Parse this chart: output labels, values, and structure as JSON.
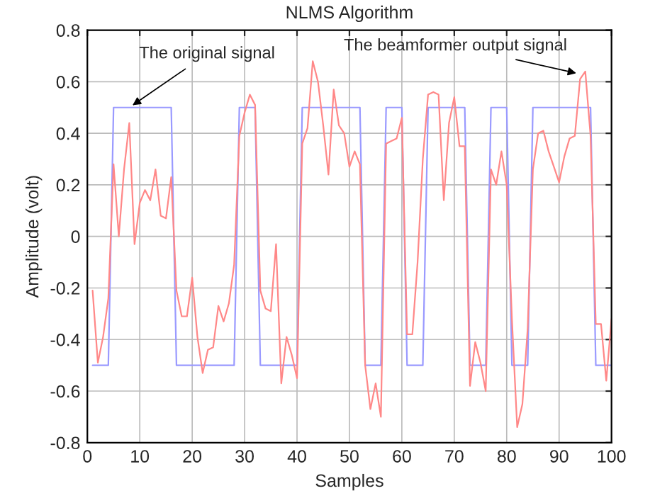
{
  "chart_data": {
    "type": "line",
    "title": "NLMS Algorithm",
    "xlabel": "Samples",
    "ylabel": "Amplitude (volt)",
    "x": [
      1,
      2,
      3,
      4,
      5,
      6,
      7,
      8,
      9,
      10,
      11,
      12,
      13,
      14,
      15,
      16,
      17,
      18,
      19,
      20,
      21,
      22,
      23,
      24,
      25,
      26,
      27,
      28,
      29,
      30,
      31,
      32,
      33,
      34,
      35,
      36,
      37,
      38,
      39,
      40,
      41,
      42,
      43,
      44,
      45,
      46,
      47,
      48,
      49,
      50,
      51,
      52,
      53,
      54,
      55,
      56,
      57,
      58,
      59,
      60,
      61,
      62,
      63,
      64,
      65,
      66,
      67,
      68,
      69,
      70,
      71,
      72,
      73,
      74,
      75,
      76,
      77,
      78,
      79,
      80,
      81,
      82,
      83,
      84,
      85,
      86,
      87,
      88,
      89,
      90,
      91,
      92,
      93,
      94,
      95,
      96,
      97,
      98,
      99,
      100
    ],
    "series": [
      {
        "color": "#9a9aff",
        "values": [
          -0.5,
          -0.5,
          -0.5,
          -0.5,
          0.5,
          0.5,
          0.5,
          0.5,
          0.5,
          0.5,
          0.5,
          0.5,
          0.5,
          0.5,
          0.5,
          0.5,
          -0.5,
          -0.5,
          -0.5,
          -0.5,
          -0.5,
          -0.5,
          -0.5,
          -0.5,
          -0.5,
          -0.5,
          -0.5,
          -0.5,
          0.5,
          0.5,
          0.5,
          0.5,
          -0.5,
          -0.5,
          -0.5,
          -0.5,
          -0.5,
          -0.5,
          -0.5,
          -0.5,
          0.5,
          0.5,
          0.5,
          0.5,
          0.5,
          0.5,
          0.5,
          0.5,
          0.5,
          0.5,
          0.5,
          0.5,
          -0.5,
          -0.5,
          -0.5,
          -0.5,
          0.5,
          0.5,
          0.5,
          0.5,
          -0.5,
          -0.5,
          -0.5,
          -0.5,
          0.5,
          0.5,
          0.5,
          0.5,
          0.5,
          0.5,
          0.5,
          0.5,
          -0.5,
          -0.5,
          -0.5,
          -0.5,
          0.5,
          0.5,
          0.5,
          0.5,
          -0.5,
          -0.5,
          -0.5,
          -0.5,
          0.5,
          0.5,
          0.5,
          0.5,
          0.5,
          0.5,
          0.5,
          0.5,
          0.5,
          0.5,
          0.5,
          0.5,
          -0.5,
          -0.5,
          -0.5,
          -0.5
        ]
      },
      {
        "color": "#ff8888",
        "values": [
          -0.21,
          -0.49,
          -0.39,
          -0.24,
          0.28,
          0.0,
          0.26,
          0.44,
          -0.03,
          0.13,
          0.18,
          0.14,
          0.26,
          0.08,
          0.07,
          0.23,
          -0.21,
          -0.31,
          -0.31,
          -0.16,
          -0.39,
          -0.53,
          -0.44,
          -0.43,
          -0.27,
          -0.33,
          -0.26,
          -0.11,
          0.39,
          0.48,
          0.55,
          0.51,
          -0.21,
          -0.28,
          -0.29,
          -0.03,
          -0.57,
          -0.39,
          -0.46,
          -0.55,
          0.36,
          0.42,
          0.68,
          0.6,
          0.43,
          0.24,
          0.57,
          0.43,
          0.4,
          0.27,
          0.33,
          0.28,
          -0.5,
          -0.67,
          -0.57,
          -0.7,
          0.36,
          0.37,
          0.38,
          0.46,
          -0.38,
          -0.38,
          -0.1,
          0.3,
          0.55,
          0.56,
          0.55,
          0.14,
          0.44,
          0.54,
          0.35,
          0.35,
          -0.58,
          -0.41,
          -0.49,
          -0.6,
          0.26,
          0.2,
          0.33,
          0.2,
          -0.32,
          -0.74,
          -0.65,
          -0.36,
          0.26,
          0.4,
          0.41,
          0.33,
          0.27,
          0.21,
          0.31,
          0.38,
          0.39,
          0.61,
          0.64,
          0.39,
          -0.34,
          -0.34,
          -0.56,
          -0.32
        ]
      }
    ],
    "annotations": [
      {
        "text": "The original signal",
        "x": 8,
        "y": 0.5
      },
      {
        "text": "The beamformer output signal",
        "x": 94,
        "y": 0.63
      }
    ],
    "xlim": [
      0,
      100
    ],
    "xticks": [
      0,
      10,
      20,
      30,
      40,
      50,
      60,
      70,
      80,
      90,
      100
    ],
    "ylim": [
      -0.8,
      0.8
    ],
    "yticks": [
      -0.8,
      -0.6,
      -0.4,
      -0.2,
      0,
      0.2,
      0.4,
      0.6,
      0.8
    ],
    "grid": true,
    "marker": "none",
    "line_style": "solid",
    "legend": false
  }
}
